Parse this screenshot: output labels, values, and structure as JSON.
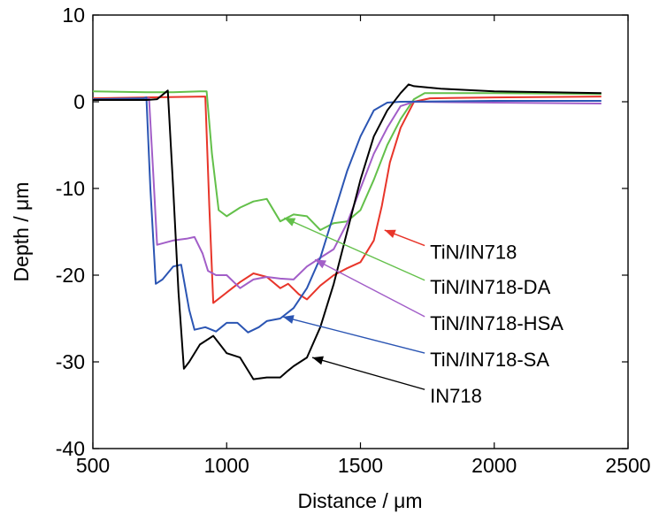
{
  "chart_data": {
    "type": "line",
    "xlabel": "Distance / μm",
    "ylabel": "Depth / μm",
    "xlim": [
      500,
      2500
    ],
    "ylim": [
      -40,
      10
    ],
    "x_ticks": [
      500,
      1000,
      1500,
      2000,
      2500
    ],
    "y_ticks": [
      10,
      0,
      -10,
      -20,
      -30,
      -40
    ],
    "x_tick_labels": [
      "500",
      "1000",
      "1500",
      "2000",
      "2500"
    ],
    "y_tick_labels": [
      "10",
      "0",
      "-10",
      "-20",
      "-30",
      "-40"
    ],
    "grid": false,
    "series": [
      {
        "name": "TiN/IN718",
        "color": "#e8352a",
        "points": [
          [
            500,
            0.4
          ],
          [
            700,
            0.5
          ],
          [
            920,
            0.6
          ],
          [
            935,
            -12
          ],
          [
            950,
            -23.2
          ],
          [
            1000,
            -22
          ],
          [
            1050,
            -20.8
          ],
          [
            1100,
            -19.8
          ],
          [
            1150,
            -20.2
          ],
          [
            1200,
            -21.5
          ],
          [
            1230,
            -21
          ],
          [
            1270,
            -22.2
          ],
          [
            1300,
            -22.8
          ],
          [
            1350,
            -21.2
          ],
          [
            1400,
            -20
          ],
          [
            1450,
            -19.2
          ],
          [
            1500,
            -18.5
          ],
          [
            1550,
            -16
          ],
          [
            1580,
            -12
          ],
          [
            1610,
            -7
          ],
          [
            1650,
            -3
          ],
          [
            1700,
            0
          ],
          [
            1760,
            0.4
          ],
          [
            2000,
            0.5
          ],
          [
            2400,
            0.6
          ]
        ],
        "label_anchor": [
          1590,
          -14.8
        ],
        "label_text_pos": [
          1760,
          -17.2
        ]
      },
      {
        "name": "TiN/IN718-DA",
        "color": "#63c04a",
        "points": [
          [
            500,
            1.2
          ],
          [
            700,
            1.1
          ],
          [
            800,
            1.1
          ],
          [
            900,
            1.2
          ],
          [
            925,
            1.2
          ],
          [
            945,
            -6
          ],
          [
            970,
            -12.5
          ],
          [
            1000,
            -13.2
          ],
          [
            1050,
            -12.2
          ],
          [
            1100,
            -11.5
          ],
          [
            1150,
            -11.2
          ],
          [
            1200,
            -13.8
          ],
          [
            1250,
            -13
          ],
          [
            1300,
            -13.2
          ],
          [
            1350,
            -14.8
          ],
          [
            1400,
            -14
          ],
          [
            1450,
            -13.8
          ],
          [
            1500,
            -12.5
          ],
          [
            1550,
            -9
          ],
          [
            1600,
            -5
          ],
          [
            1650,
            -2
          ],
          [
            1700,
            0.3
          ],
          [
            1740,
            1
          ],
          [
            2000,
            1
          ],
          [
            2400,
            0.9
          ]
        ],
        "label_anchor": [
          1215,
          -13.4
        ],
        "label_text_pos": [
          1760,
          -21.2
        ]
      },
      {
        "name": "TiN/IN718-HSA",
        "color": "#a25ec8",
        "points": [
          [
            500,
            0.2
          ],
          [
            690,
            0.3
          ],
          [
            710,
            0.4
          ],
          [
            725,
            -8
          ],
          [
            740,
            -16.5
          ],
          [
            800,
            -16
          ],
          [
            850,
            -15.8
          ],
          [
            880,
            -15.6
          ],
          [
            910,
            -17.5
          ],
          [
            930,
            -19.5
          ],
          [
            960,
            -20
          ],
          [
            1000,
            -20
          ],
          [
            1050,
            -21.5
          ],
          [
            1100,
            -20.5
          ],
          [
            1150,
            -20.2
          ],
          [
            1200,
            -20.4
          ],
          [
            1250,
            -20.5
          ],
          [
            1300,
            -19
          ],
          [
            1350,
            -18
          ],
          [
            1400,
            -17
          ],
          [
            1450,
            -14
          ],
          [
            1500,
            -10
          ],
          [
            1550,
            -6
          ],
          [
            1600,
            -3
          ],
          [
            1650,
            -0.5
          ],
          [
            1700,
            0
          ],
          [
            2000,
            -0.1
          ],
          [
            2400,
            -0.2
          ]
        ],
        "label_anchor": [
          1330,
          -18.2
        ],
        "label_text_pos": [
          1760,
          -25.4
        ]
      },
      {
        "name": "TiN/IN718-SA",
        "color": "#2b55b3",
        "points": [
          [
            500,
            0.3
          ],
          [
            690,
            0.4
          ],
          [
            700,
            0.5
          ],
          [
            715,
            -10
          ],
          [
            735,
            -21
          ],
          [
            760,
            -20.5
          ],
          [
            800,
            -19
          ],
          [
            830,
            -18.8
          ],
          [
            860,
            -24
          ],
          [
            880,
            -26.3
          ],
          [
            920,
            -26
          ],
          [
            960,
            -26.5
          ],
          [
            1000,
            -25.5
          ],
          [
            1040,
            -25.5
          ],
          [
            1080,
            -26.6
          ],
          [
            1120,
            -26
          ],
          [
            1150,
            -25.3
          ],
          [
            1200,
            -25
          ],
          [
            1250,
            -23.8
          ],
          [
            1300,
            -21.5
          ],
          [
            1350,
            -18
          ],
          [
            1400,
            -13
          ],
          [
            1450,
            -8
          ],
          [
            1500,
            -4
          ],
          [
            1550,
            -1
          ],
          [
            1600,
            -0.1
          ],
          [
            1650,
            0
          ],
          [
            2000,
            0.1
          ],
          [
            2400,
            0.1
          ]
        ],
        "label_anchor": [
          1210,
          -24.8
        ],
        "label_text_pos": [
          1760,
          -29.6
        ]
      },
      {
        "name": "IN718",
        "color": "#000000",
        "points": [
          [
            500,
            0.2
          ],
          [
            700,
            0.2
          ],
          [
            740,
            0.3
          ],
          [
            780,
            1.3
          ],
          [
            800,
            -10
          ],
          [
            820,
            -22
          ],
          [
            840,
            -30.8
          ],
          [
            860,
            -30
          ],
          [
            900,
            -28
          ],
          [
            950,
            -27
          ],
          [
            1000,
            -29
          ],
          [
            1050,
            -29.5
          ],
          [
            1100,
            -32
          ],
          [
            1150,
            -31.8
          ],
          [
            1200,
            -31.8
          ],
          [
            1230,
            -31
          ],
          [
            1250,
            -30.5
          ],
          [
            1300,
            -29.5
          ],
          [
            1350,
            -26
          ],
          [
            1400,
            -21
          ],
          [
            1450,
            -15
          ],
          [
            1500,
            -9
          ],
          [
            1550,
            -4
          ],
          [
            1600,
            -1
          ],
          [
            1650,
            1
          ],
          [
            1680,
            2
          ],
          [
            1700,
            1.8
          ],
          [
            1800,
            1.5
          ],
          [
            2000,
            1.2
          ],
          [
            2400,
            1
          ]
        ],
        "label_anchor": [
          1320,
          -29.5
        ],
        "label_text_pos": [
          1760,
          -33.8
        ]
      }
    ]
  }
}
